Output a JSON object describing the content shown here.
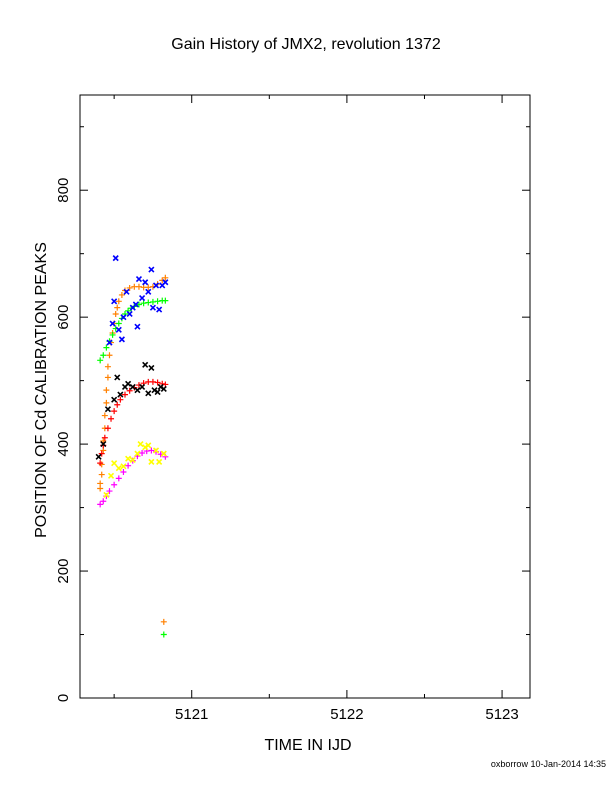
{
  "title": "Gain History of JMX2, revolution 1372",
  "xlabel": "TIME IN IJD",
  "ylabel": "POSITION OF Cd CALIBRATION PEAKS",
  "footer": "oxborrow 10-Jan-2014 14:35",
  "chart_data": {
    "type": "scatter",
    "title": "Gain History of JMX2, revolution 1372",
    "xlabel": "TIME IN IJD",
    "ylabel": "POSITION OF Cd CALIBRATION PEAKS",
    "xlim": [
      5120.28,
      5123.18
    ],
    "ylim": [
      0,
      950
    ],
    "xticks": [
      5121,
      5122,
      5123
    ],
    "yticks": [
      0,
      200,
      400,
      600,
      800
    ],
    "grid": false,
    "legend": "none",
    "series": [
      {
        "color": "#ff8000",
        "marker": "plus",
        "points": [
          [
            5120.41,
            330
          ],
          [
            5120.41,
            338
          ],
          [
            5120.42,
            352
          ],
          [
            5120.42,
            368
          ],
          [
            5120.43,
            390
          ],
          [
            5120.43,
            405
          ],
          [
            5120.44,
            425
          ],
          [
            5120.44,
            445
          ],
          [
            5120.45,
            465
          ],
          [
            5120.45,
            485
          ],
          [
            5120.46,
            505
          ],
          [
            5120.46,
            522
          ],
          [
            5120.47,
            540
          ],
          [
            5120.48,
            560
          ],
          [
            5120.49,
            575
          ],
          [
            5120.5,
            590
          ],
          [
            5120.51,
            605
          ],
          [
            5120.52,
            615
          ],
          [
            5120.53,
            625
          ],
          [
            5120.55,
            635
          ],
          [
            5120.57,
            642
          ],
          [
            5120.6,
            646
          ],
          [
            5120.63,
            648
          ],
          [
            5120.66,
            648
          ],
          [
            5120.69,
            647
          ],
          [
            5120.72,
            647
          ],
          [
            5120.75,
            648
          ],
          [
            5120.78,
            652
          ],
          [
            5120.81,
            658
          ],
          [
            5120.83,
            662
          ],
          [
            5120.82,
            120
          ]
        ]
      },
      {
        "color": "#00ff00",
        "marker": "plus",
        "points": [
          [
            5120.41,
            532
          ],
          [
            5120.43,
            540
          ],
          [
            5120.45,
            552
          ],
          [
            5120.47,
            562
          ],
          [
            5120.49,
            572
          ],
          [
            5120.51,
            582
          ],
          [
            5120.53,
            590
          ],
          [
            5120.55,
            598
          ],
          [
            5120.57,
            605
          ],
          [
            5120.59,
            610
          ],
          [
            5120.61,
            614
          ],
          [
            5120.63,
            617
          ],
          [
            5120.66,
            620
          ],
          [
            5120.69,
            622
          ],
          [
            5120.72,
            623
          ],
          [
            5120.75,
            624
          ],
          [
            5120.78,
            625
          ],
          [
            5120.81,
            626
          ],
          [
            5120.83,
            626
          ],
          [
            5120.82,
            100
          ]
        ]
      },
      {
        "color": "#ff0000",
        "marker": "plus",
        "points": [
          [
            5120.41,
            370
          ],
          [
            5120.42,
            385
          ],
          [
            5120.43,
            398
          ],
          [
            5120.44,
            410
          ],
          [
            5120.46,
            425
          ],
          [
            5120.48,
            440
          ],
          [
            5120.5,
            452
          ],
          [
            5120.52,
            462
          ],
          [
            5120.54,
            470
          ],
          [
            5120.57,
            478
          ],
          [
            5120.6,
            484
          ],
          [
            5120.63,
            489
          ],
          [
            5120.66,
            493
          ],
          [
            5120.69,
            496
          ],
          [
            5120.72,
            498
          ],
          [
            5120.75,
            498
          ],
          [
            5120.78,
            497
          ],
          [
            5120.81,
            495
          ],
          [
            5120.83,
            494
          ]
        ]
      },
      {
        "color": "#ff00ff",
        "marker": "plus",
        "points": [
          [
            5120.41,
            305
          ],
          [
            5120.43,
            310
          ],
          [
            5120.45,
            318
          ],
          [
            5120.47,
            326
          ],
          [
            5120.5,
            336
          ],
          [
            5120.53,
            346
          ],
          [
            5120.56,
            356
          ],
          [
            5120.59,
            366
          ],
          [
            5120.62,
            374
          ],
          [
            5120.65,
            381
          ],
          [
            5120.68,
            386
          ],
          [
            5120.71,
            389
          ],
          [
            5120.74,
            390
          ],
          [
            5120.77,
            388
          ],
          [
            5120.8,
            384
          ],
          [
            5120.83,
            380
          ]
        ]
      },
      {
        "color": "#0000ff",
        "marker": "cross",
        "points": [
          [
            5120.47,
            560
          ],
          [
            5120.49,
            590
          ],
          [
            5120.5,
            625
          ],
          [
            5120.51,
            693
          ],
          [
            5120.53,
            580
          ],
          [
            5120.55,
            565
          ],
          [
            5120.56,
            600
          ],
          [
            5120.58,
            640
          ],
          [
            5120.6,
            605
          ],
          [
            5120.62,
            615
          ],
          [
            5120.64,
            620
          ],
          [
            5120.65,
            585
          ],
          [
            5120.66,
            660
          ],
          [
            5120.68,
            630
          ],
          [
            5120.7,
            655
          ],
          [
            5120.72,
            640
          ],
          [
            5120.74,
            675
          ],
          [
            5120.75,
            615
          ],
          [
            5120.77,
            650
          ],
          [
            5120.79,
            612
          ],
          [
            5120.81,
            650
          ],
          [
            5120.83,
            655
          ]
        ]
      },
      {
        "color": "#000000",
        "marker": "cross",
        "points": [
          [
            5120.4,
            380
          ],
          [
            5120.43,
            400
          ],
          [
            5120.46,
            455
          ],
          [
            5120.5,
            470
          ],
          [
            5120.52,
            505
          ],
          [
            5120.54,
            478
          ],
          [
            5120.57,
            490
          ],
          [
            5120.59,
            495
          ],
          [
            5120.62,
            490
          ],
          [
            5120.65,
            485
          ],
          [
            5120.68,
            490
          ],
          [
            5120.7,
            525
          ],
          [
            5120.72,
            480
          ],
          [
            5120.74,
            520
          ],
          [
            5120.76,
            485
          ],
          [
            5120.78,
            482
          ],
          [
            5120.8,
            490
          ],
          [
            5120.82,
            487
          ]
        ]
      },
      {
        "color": "#ffff00",
        "marker": "cross",
        "points": [
          [
            5120.45,
            320
          ],
          [
            5120.48,
            350
          ],
          [
            5120.5,
            370
          ],
          [
            5120.53,
            362
          ],
          [
            5120.56,
            365
          ],
          [
            5120.59,
            377
          ],
          [
            5120.62,
            375
          ],
          [
            5120.65,
            385
          ],
          [
            5120.67,
            400
          ],
          [
            5120.7,
            395
          ],
          [
            5120.72,
            398
          ],
          [
            5120.74,
            372
          ],
          [
            5120.77,
            390
          ],
          [
            5120.79,
            372
          ],
          [
            5120.82,
            385
          ]
        ]
      }
    ]
  }
}
